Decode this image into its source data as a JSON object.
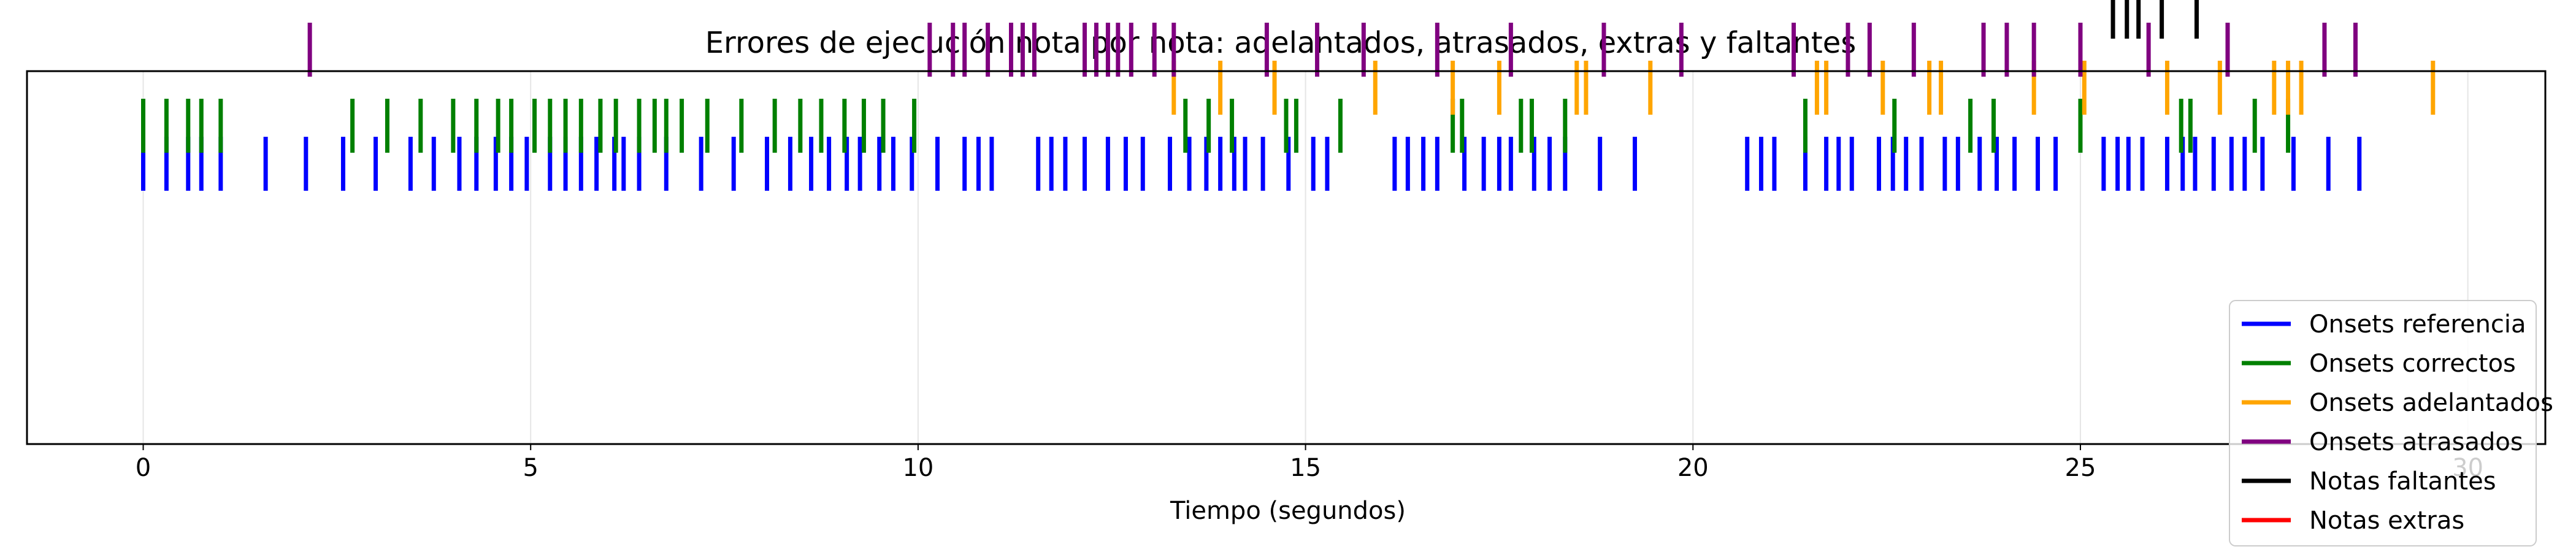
{
  "chart_data": {
    "type": "eventplot",
    "title": "Errores de ejecución nota por nota: adelantados, atrasados, extras y faltantes",
    "xlabel": "Tiempo (segundos)",
    "ylabel": "",
    "xlim": [
      -1.5,
      31.0
    ],
    "x_ticks": [
      0,
      5,
      10,
      15,
      20,
      25,
      30
    ],
    "grid": true,
    "legend_position": "bottom-right",
    "series": [
      {
        "name": "Onsets referencia",
        "color": "#0000ff",
        "row": 5,
        "x": [
          0.0,
          0.3,
          0.58,
          0.75,
          1.0,
          1.58,
          2.1,
          2.58,
          3.0,
          3.45,
          3.75,
          4.08,
          4.3,
          4.55,
          4.75,
          4.95,
          5.25,
          5.45,
          5.65,
          5.85,
          6.08,
          6.2,
          6.4,
          6.75,
          7.2,
          7.62,
          8.05,
          8.35,
          8.62,
          8.85,
          9.08,
          9.25,
          9.5,
          9.68,
          9.92,
          10.25,
          10.6,
          10.78,
          10.95,
          11.55,
          11.72,
          11.9,
          12.15,
          12.45,
          12.68,
          12.9,
          13.25,
          13.5,
          13.72,
          13.9,
          14.08,
          14.22,
          14.45,
          14.78,
          15.1,
          15.28,
          16.15,
          16.32,
          16.52,
          16.7,
          17.05,
          17.3,
          17.5,
          17.65,
          17.95,
          18.15,
          18.35,
          18.8,
          19.25,
          20.7,
          20.88,
          21.05,
          21.45,
          21.72,
          21.88,
          22.05,
          22.4,
          22.58,
          22.75,
          22.95,
          23.25,
          23.42,
          23.7,
          23.92,
          24.15,
          24.45,
          24.68,
          25.3,
          25.48,
          25.62,
          25.8,
          26.12,
          26.32,
          26.48,
          26.72,
          26.95,
          27.12,
          27.35,
          27.75,
          28.2,
          28.6
        ]
      },
      {
        "name": "Onsets correctos",
        "color": "#008000",
        "row": 4,
        "x": [
          0.0,
          0.3,
          0.58,
          0.75,
          1.0,
          2.7,
          3.15,
          3.58,
          4.0,
          4.3,
          4.58,
          4.75,
          5.05,
          5.25,
          5.45,
          5.65,
          5.9,
          6.1,
          6.4,
          6.6,
          6.75,
          6.95,
          7.28,
          7.72,
          8.15,
          8.48,
          8.75,
          9.05,
          9.3,
          9.55,
          9.95,
          13.45,
          13.75,
          14.05,
          14.75,
          14.88,
          15.45,
          16.9,
          17.02,
          17.78,
          17.92,
          18.35,
          21.45,
          22.6,
          23.58,
          23.88,
          25.0,
          26.3,
          26.42,
          27.25,
          27.68
        ]
      },
      {
        "name": "Onsets adelantados",
        "color": "#ffa500",
        "row": 3,
        "x": [
          13.3,
          13.9,
          14.6,
          15.9,
          16.9,
          17.5,
          18.5,
          18.62,
          19.45,
          21.6,
          21.72,
          22.45,
          23.05,
          23.2,
          24.4,
          25.05,
          26.12,
          26.8,
          27.5,
          27.68,
          27.85,
          29.55
        ]
      },
      {
        "name": "Onsets atrasados",
        "color": "#800080",
        "row": 2,
        "x": [
          2.15,
          10.15,
          10.45,
          10.6,
          10.9,
          11.2,
          11.35,
          11.5,
          12.15,
          12.3,
          12.45,
          12.58,
          12.75,
          13.05,
          13.3,
          14.5,
          15.15,
          15.75,
          16.7,
          17.65,
          18.85,
          19.85,
          21.3,
          22.0,
          22.28,
          22.85,
          23.75,
          24.05,
          24.4,
          25.0,
          25.88,
          26.9,
          28.15,
          28.55
        ]
      },
      {
        "name": "Notas faltantes",
        "color": "#000000",
        "row": 1,
        "x": [
          25.42,
          25.6,
          25.75,
          26.05,
          26.5
        ]
      },
      {
        "name": "Notas extras",
        "color": "#ff0000",
        "row": 0,
        "x": []
      }
    ]
  }
}
